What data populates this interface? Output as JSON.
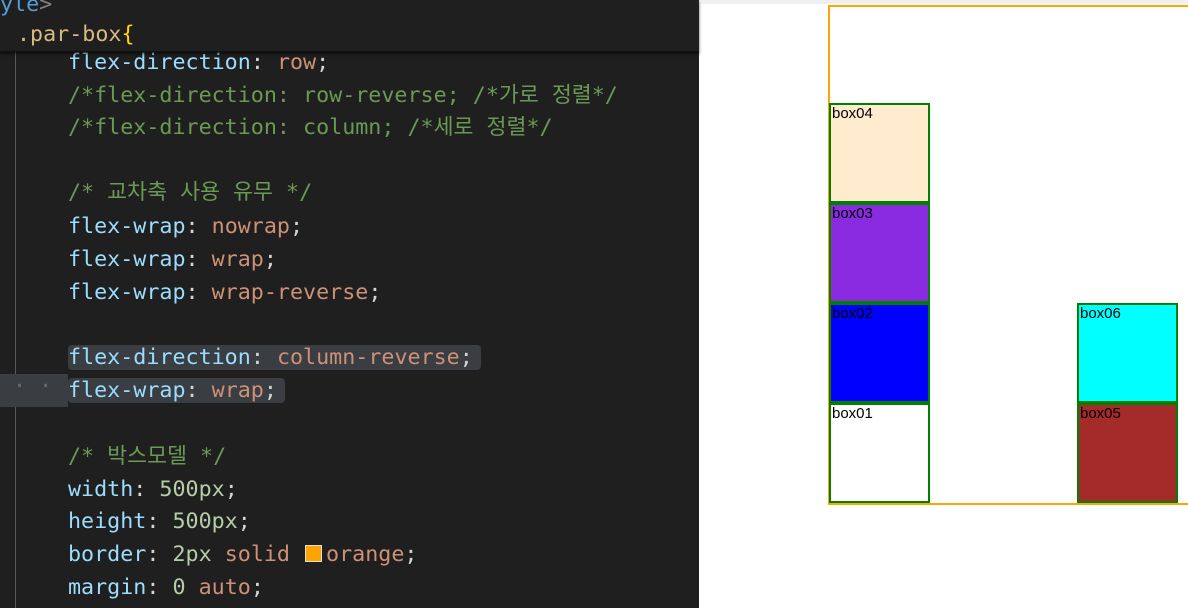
{
  "editor": {
    "sticky": [
      [
        [
          "tag",
          "yle"
        ],
        [
          "ang",
          ">"
        ]
      ],
      [
        [
          "sel",
          ".par-box"
        ],
        [
          "brace",
          "{"
        ]
      ]
    ],
    "lines": [
      [
        [
          "prop",
          "flex-direction"
        ],
        [
          "pun",
          ": "
        ],
        [
          "val",
          "row"
        ],
        [
          "pun",
          ";"
        ]
      ],
      [
        [
          "cm",
          "/*flex-direction: row-reverse; /*가로 정렬*/"
        ]
      ],
      [
        [
          "cm",
          "/*flex-direction: column; /*세로 정렬*/"
        ]
      ],
      [],
      [
        [
          "cm",
          "/* 교차축 사용 유무 */"
        ]
      ],
      [
        [
          "prop",
          "flex-wrap"
        ],
        [
          "pun",
          ": "
        ],
        [
          "val",
          "nowrap"
        ],
        [
          "pun",
          ";"
        ]
      ],
      [
        [
          "prop",
          "flex-wrap"
        ],
        [
          "pun",
          ": "
        ],
        [
          "val",
          "wrap"
        ],
        [
          "pun",
          ";"
        ]
      ],
      [
        [
          "prop",
          "flex-wrap"
        ],
        [
          "pun",
          ": "
        ],
        [
          "val",
          "wrap-reverse"
        ],
        [
          "pun",
          ";"
        ]
      ],
      [],
      [
        [
          "prop",
          "flex-direction"
        ],
        [
          "pun",
          ": "
        ],
        [
          "val",
          "column-reverse"
        ],
        [
          "pun",
          ";"
        ]
      ],
      [
        [
          "prop",
          "flex-wrap"
        ],
        [
          "pun",
          ": "
        ],
        [
          "val",
          "wrap"
        ],
        [
          "pun",
          ";"
        ]
      ],
      [],
      [
        [
          "cm",
          "/* 박스모델 */"
        ]
      ],
      [
        [
          "prop",
          "width"
        ],
        [
          "pun",
          ": "
        ],
        [
          "num",
          "500px"
        ],
        [
          "pun",
          ";"
        ]
      ],
      [
        [
          "prop",
          "height"
        ],
        [
          "pun",
          ": "
        ],
        [
          "num",
          "500px"
        ],
        [
          "pun",
          ";"
        ]
      ],
      [
        [
          "prop",
          "border"
        ],
        [
          "pun",
          ": "
        ],
        [
          "num",
          "2px "
        ],
        [
          "val",
          "solid "
        ],
        [
          "swatch",
          "#ffa500"
        ],
        [
          "val",
          "orange"
        ],
        [
          "pun",
          ";"
        ]
      ],
      [
        [
          "prop",
          "margin"
        ],
        [
          "pun",
          ": "
        ],
        [
          "num",
          "0 "
        ],
        [
          "val",
          "auto"
        ],
        [
          "pun",
          ";"
        ]
      ]
    ],
    "highlighted_lines": [
      9,
      10
    ]
  },
  "preview": {
    "parent_border_color": "#ffa500",
    "boxes": [
      {
        "label": "box04",
        "color": "#ffebcd"
      },
      {
        "label": "box03",
        "color": "#8a2be2"
      },
      {
        "label": "box02",
        "color": "#0000ff"
      },
      {
        "label": "box01",
        "color": "#ffffff"
      },
      {
        "label": "box06",
        "color": "#00ffff"
      },
      {
        "label": "box05",
        "color": "#a52a2a"
      }
    ]
  }
}
